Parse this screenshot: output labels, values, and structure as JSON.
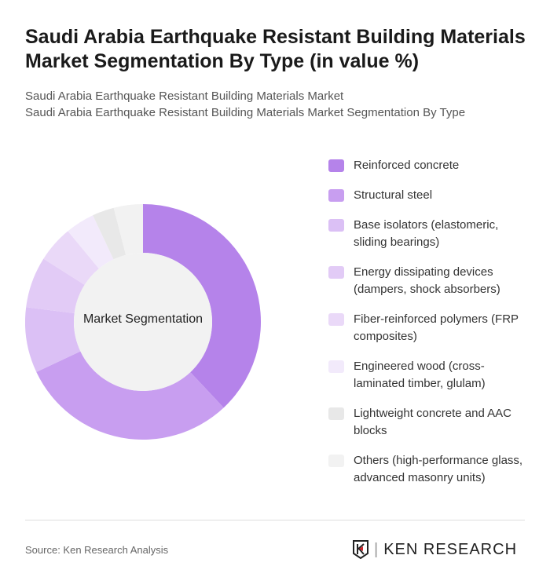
{
  "header": {
    "title": "Saudi Arabia Earthquake Resistant Building Materials Market Segmentation By Type (in value %)",
    "subtitle_line1": "Saudi Arabia Earthquake Resistant Building Materials Market",
    "subtitle_line2": "Saudi Arabia Earthquake Resistant Building Materials Market Segmentation By Type"
  },
  "chart_data": {
    "type": "pie",
    "subtype": "donut",
    "title": "Saudi Arabia Earthquake Resistant Building Materials Market Segmentation By Type (in value %)",
    "center_label": "Market Segmentation",
    "categories": [
      "Reinforced concrete",
      "Structural steel",
      "Base isolators (elastomeric, sliding bearings)",
      "Energy dissipating devices (dampers, shock absorbers)",
      "Fiber-reinforced polymers (FRP composites)",
      "Engineered wood (cross-laminated timber, glulam)",
      "Lightweight concrete and AAC blocks",
      "Others (high-performance glass, advanced masonry units)"
    ],
    "values": [
      38,
      30,
      9,
      7,
      5,
      4,
      3,
      4
    ],
    "colors": [
      "#b583ea",
      "#c89ef0",
      "#dbc0f5",
      "#e2cbf6",
      "#ead9f8",
      "#f2eafb",
      "#e8e8e8",
      "#f2f2f2"
    ],
    "legend_position": "right"
  },
  "legend": {
    "items": [
      {
        "label": "Reinforced concrete",
        "color": "#b583ea"
      },
      {
        "label": "Structural steel",
        "color": "#c89ef0"
      },
      {
        "label": "Base isolators (elastomeric, sliding bearings)",
        "color": "#dbc0f5"
      },
      {
        "label": "Energy dissipating devices (dampers, shock absorbers)",
        "color": "#e2cbf6"
      },
      {
        "label": "Fiber-reinforced polymers (FRP composites)",
        "color": "#ead9f8"
      },
      {
        "label": "Engineered wood (cross-laminated timber, glulam)",
        "color": "#f2eafb"
      },
      {
        "label": "Lightweight concrete and AAC blocks",
        "color": "#e8e8e8"
      },
      {
        "label": "Others (high-performance glass, advanced masonry units)",
        "color": "#f2f2f2"
      }
    ]
  },
  "footer": {
    "source": "Source: Ken Research Analysis",
    "logo_text": "KEN RESEARCH"
  }
}
